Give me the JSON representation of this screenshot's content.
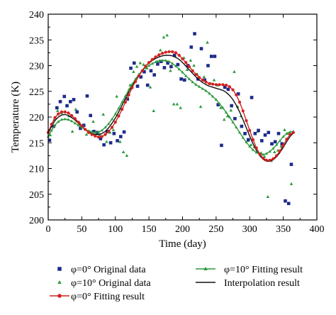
{
  "chart_data": {
    "type": "line",
    "xlabel": "Time (day)",
    "ylabel": "Temperature (K)",
    "xlim": [
      0,
      400
    ],
    "ylim": [
      200,
      240
    ],
    "x_ticks": [
      0,
      50,
      100,
      150,
      200,
      250,
      300,
      350,
      400
    ],
    "y_ticks": [
      200,
      205,
      210,
      215,
      220,
      225,
      230,
      235,
      240
    ],
    "grid": false,
    "legend_position": "bottom",
    "series": [
      {
        "name": "φ=0° Original data",
        "kind": "scatter",
        "marker": "square",
        "color": "#1f2a8c",
        "x": [
          2,
          8,
          13,
          18,
          24,
          28,
          33,
          38,
          43,
          48,
          53,
          58,
          63,
          68,
          73,
          78,
          83,
          88,
          93,
          98,
          103,
          108,
          113,
          118,
          123,
          128,
          133,
          138,
          143,
          148,
          153,
          158,
          163,
          168,
          173,
          178,
          183,
          188,
          193,
          198,
          203,
          208,
          213,
          218,
          223,
          228,
          233,
          238,
          243,
          248,
          253,
          258,
          263,
          268,
          273,
          278,
          283,
          288,
          293,
          298,
          303,
          308,
          313,
          318,
          323,
          328,
          333,
          338,
          343,
          348,
          353,
          358,
          362
        ],
        "y": [
          215.5,
          218.2,
          221.8,
          223.0,
          224.0,
          222.2,
          223.0,
          223.4,
          221.0,
          217.8,
          218.4,
          224.1,
          220.3,
          217.2,
          217.0,
          215.8,
          214.6,
          217.2,
          215.0,
          216.8,
          215.4,
          216.2,
          217.1,
          223.5,
          229.5,
          230.5,
          226.0,
          227.8,
          228.8,
          226.2,
          229.0,
          228.2,
          230.3,
          230.8,
          229.6,
          230.5,
          229.8,
          232.0,
          230.2,
          227.4,
          227.2,
          230.0,
          233.6,
          236.2,
          227.4,
          233.3,
          227.2,
          230.0,
          231.8,
          231.8,
          222.4,
          214.5,
          225.8,
          225.4,
          222.2,
          219.7,
          224.5,
          218.2,
          216.8,
          215.6,
          223.8,
          216.8,
          217.4,
          215.4,
          216.5,
          217.0,
          214.8,
          215.2,
          216.8,
          214.8,
          203.7,
          203.2,
          210.8
        ]
      },
      {
        "name": "φ=10° Original data",
        "kind": "scatter",
        "marker": "triangle",
        "color": "#2e9a3e",
        "x": [
          3,
          9,
          14,
          20,
          25,
          31,
          36,
          41,
          47,
          52,
          57,
          62,
          67,
          72,
          77,
          82,
          87,
          92,
          97,
          102,
          107,
          112,
          117,
          122,
          127,
          132,
          137,
          142,
          147,
          152,
          157,
          162,
          167,
          172,
          177,
          182,
          187,
          192,
          197,
          202,
          207,
          212,
          217,
          222,
          227,
          232,
          237,
          242,
          247,
          252,
          257,
          262,
          267,
          272,
          277,
          282,
          287,
          292,
          297,
          302,
          307,
          312,
          317,
          322,
          327,
          332,
          337,
          342,
          347,
          352,
          357,
          362
        ],
        "y": [
          216.5,
          219.5,
          221.2,
          220.8,
          221.0,
          220.2,
          217.2,
          221.5,
          218.8,
          218.0,
          216.6,
          217.2,
          219.1,
          216.8,
          216.5,
          220.5,
          215.2,
          217.0,
          217.5,
          224.0,
          215.2,
          213.2,
          212.5,
          226.2,
          228.8,
          229.8,
          230.5,
          230.2,
          229.5,
          225.8,
          221.2,
          230.8,
          233.0,
          235.5,
          235.9,
          229.0,
          222.5,
          222.5,
          221.8,
          231.5,
          229.2,
          231.0,
          230.0,
          228.3,
          222.0,
          227.8,
          234.5,
          226.5,
          227.2,
          226.2,
          221.8,
          219.5,
          220.2,
          221.3,
          228.8,
          222.0,
          220.2,
          216.7,
          215.4,
          214.6,
          214.2,
          217.2,
          213.0,
          212.3,
          204.5,
          211.5,
          213.2,
          213.5,
          214.3,
          217.5,
          216.8,
          207.0
        ]
      },
      {
        "name": "φ=0° Fitting result",
        "kind": "line-marker",
        "marker": "circle",
        "color": "#d42020",
        "x": [
          0,
          5,
          10,
          15,
          20,
          25,
          30,
          35,
          40,
          45,
          50,
          55,
          60,
          65,
          70,
          75,
          80,
          85,
          90,
          95,
          100,
          105,
          110,
          115,
          120,
          125,
          130,
          135,
          140,
          145,
          150,
          155,
          160,
          165,
          170,
          175,
          180,
          185,
          190,
          195,
          200,
          205,
          210,
          215,
          220,
          225,
          230,
          235,
          240,
          245,
          250,
          255,
          260,
          265,
          270,
          275,
          280,
          285,
          290,
          295,
          300,
          305,
          310,
          315,
          320,
          325,
          330,
          335,
          340,
          345,
          350,
          355,
          360,
          365
        ],
        "y": [
          217.0,
          218.6,
          219.9,
          220.6,
          221.0,
          221.0,
          220.8,
          220.3,
          219.7,
          219.0,
          218.3,
          217.6,
          217.0,
          216.6,
          216.3,
          216.1,
          216.2,
          216.6,
          217.2,
          218.0,
          219.0,
          220.2,
          221.5,
          222.9,
          224.3,
          225.7,
          226.9,
          228.0,
          229.0,
          229.9,
          230.6,
          231.2,
          231.7,
          232.1,
          232.4,
          232.6,
          232.7,
          232.7,
          232.5,
          232.0,
          231.3,
          230.6,
          229.8,
          229.0,
          228.3,
          227.7,
          227.2,
          226.8,
          226.5,
          226.4,
          226.3,
          226.3,
          226.3,
          226.2,
          225.9,
          225.3,
          224.3,
          222.9,
          221.2,
          219.3,
          217.4,
          215.6,
          214.0,
          212.8,
          212.0,
          211.6,
          211.6,
          211.9,
          212.5,
          213.4,
          214.5,
          215.7,
          216.6,
          217.0
        ]
      },
      {
        "name": "φ=10° Fitting result",
        "kind": "line-marker",
        "marker": "triangle",
        "color": "#2e9a3e",
        "x": [
          0,
          5,
          10,
          15,
          20,
          25,
          30,
          35,
          40,
          45,
          50,
          55,
          60,
          65,
          70,
          75,
          80,
          85,
          90,
          95,
          100,
          105,
          110,
          115,
          120,
          125,
          130,
          135,
          140,
          145,
          150,
          155,
          160,
          165,
          170,
          175,
          180,
          185,
          190,
          195,
          200,
          205,
          210,
          215,
          220,
          225,
          230,
          235,
          240,
          245,
          250,
          255,
          260,
          265,
          270,
          275,
          280,
          285,
          290,
          295,
          300,
          305,
          310,
          315,
          320,
          325,
          330,
          335,
          340,
          345,
          350,
          355,
          360,
          365
        ],
        "y": [
          216.2,
          217.4,
          218.4,
          219.1,
          219.5,
          219.6,
          219.5,
          219.2,
          218.8,
          218.4,
          218.0,
          217.6,
          217.3,
          217.1,
          217.0,
          217.1,
          217.4,
          218.0,
          218.7,
          219.6,
          220.6,
          221.7,
          222.9,
          224.1,
          225.3,
          226.4,
          227.4,
          228.3,
          229.0,
          229.6,
          230.0,
          230.4,
          230.7,
          230.9,
          231.0,
          231.0,
          230.8,
          230.4,
          229.9,
          229.3,
          228.7,
          228.0,
          227.4,
          226.8,
          226.3,
          225.9,
          225.5,
          225.1,
          224.6,
          224.0,
          223.4,
          222.6,
          221.8,
          220.9,
          220.0,
          219.0,
          218.0,
          217.0,
          216.0,
          215.1,
          214.3,
          213.6,
          213.1,
          212.8,
          212.7,
          212.9,
          213.3,
          213.9,
          214.6,
          215.4,
          216.2,
          216.8,
          217.1,
          217.2
        ]
      },
      {
        "name": "Interpolation result",
        "kind": "line",
        "color": "#111111",
        "x": [
          0,
          5,
          10,
          15,
          20,
          25,
          30,
          35,
          40,
          45,
          50,
          55,
          60,
          65,
          70,
          75,
          80,
          85,
          90,
          95,
          100,
          105,
          110,
          115,
          120,
          125,
          130,
          135,
          140,
          145,
          150,
          155,
          160,
          165,
          170,
          175,
          180,
          185,
          190,
          195,
          200,
          205,
          210,
          215,
          220,
          225,
          230,
          235,
          240,
          245,
          250,
          255,
          260,
          265,
          270,
          275,
          280,
          285,
          290,
          295,
          300,
          305,
          310,
          315,
          320,
          325,
          330,
          335,
          340,
          345,
          350,
          355,
          360,
          365
        ],
        "y": [
          216.8,
          218.2,
          219.3,
          220.0,
          220.4,
          220.5,
          220.3,
          219.9,
          219.4,
          218.8,
          218.2,
          217.6,
          217.1,
          216.8,
          216.6,
          216.6,
          216.8,
          217.2,
          217.9,
          218.8,
          219.8,
          221.0,
          222.3,
          223.6,
          224.9,
          226.1,
          227.2,
          228.2,
          229.1,
          229.9,
          230.5,
          231.0,
          231.4,
          231.7,
          231.9,
          232.0,
          232.0,
          231.9,
          231.6,
          231.2,
          230.6,
          229.9,
          229.2,
          228.5,
          227.8,
          227.2,
          226.7,
          226.3,
          226.0,
          225.8,
          225.6,
          225.4,
          225.2,
          224.8,
          224.2,
          223.4,
          222.3,
          221.0,
          219.5,
          217.9,
          216.3,
          214.8,
          213.5,
          212.5,
          211.8,
          211.4,
          211.4,
          211.7,
          212.3,
          213.1,
          214.1,
          215.2,
          216.2,
          216.9
        ]
      }
    ]
  }
}
